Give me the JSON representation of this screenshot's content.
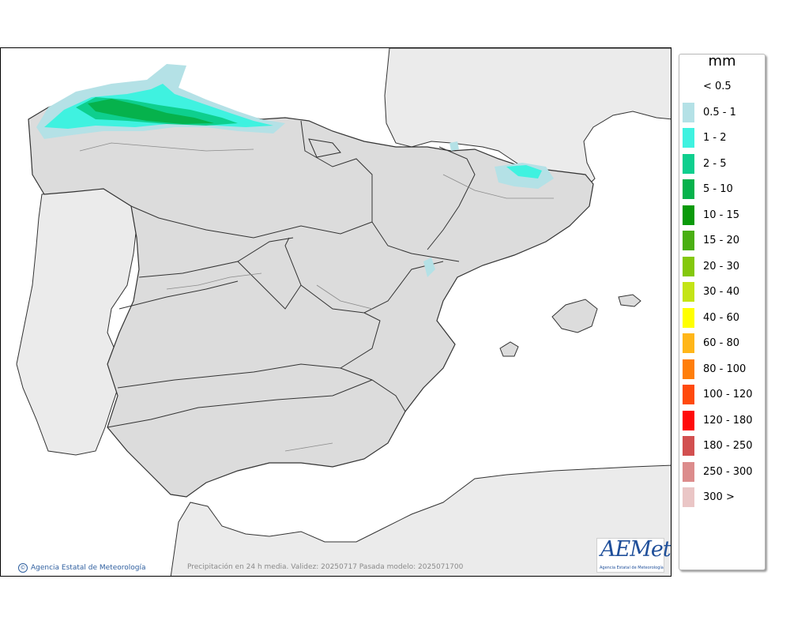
{
  "legend": {
    "title": "mm",
    "items": [
      {
        "label": "< 0.5",
        "color": "#ffffff"
      },
      {
        "label": "0.5 - 1",
        "color": "#b4e1e6"
      },
      {
        "label": "1 - 2",
        "color": "#3ff2e0"
      },
      {
        "label": "2 - 5",
        "color": "#0ecf8e"
      },
      {
        "label": "5 - 10",
        "color": "#06b24c"
      },
      {
        "label": "10 - 15",
        "color": "#0a9a0a"
      },
      {
        "label": "15 - 20",
        "color": "#4aaf12"
      },
      {
        "label": "20 - 30",
        "color": "#84c80c"
      },
      {
        "label": "30 - 40",
        "color": "#c4e416"
      },
      {
        "label": "40 - 60",
        "color": "#ffff00"
      },
      {
        "label": "60 - 80",
        "color": "#ffb619"
      },
      {
        "label": "80 - 100",
        "color": "#ff7e0a"
      },
      {
        "label": "100 - 120",
        "color": "#ff4a0c"
      },
      {
        "label": "120 - 180",
        "color": "#ff0a0a"
      },
      {
        "label": "180 - 250",
        "color": "#d25050"
      },
      {
        "label": "250 - 300",
        "color": "#dc8c8c"
      },
      {
        "label": "300 >",
        "color": "#eac6c6"
      }
    ]
  },
  "credit": {
    "text": "Agencia Estatal de Meteorología"
  },
  "caption": {
    "text": "Precipitación en 24 h media. Validez: 20250717 Pasada modelo: 2025071700"
  },
  "logo": {
    "word": "AEMet",
    "subtitle": "Agencia Estatal de Meteorología"
  },
  "colors": {
    "sea": "#ffffff",
    "land": "#dcdcdc",
    "foreign_land": "#ebebeb",
    "border": "#333333"
  }
}
